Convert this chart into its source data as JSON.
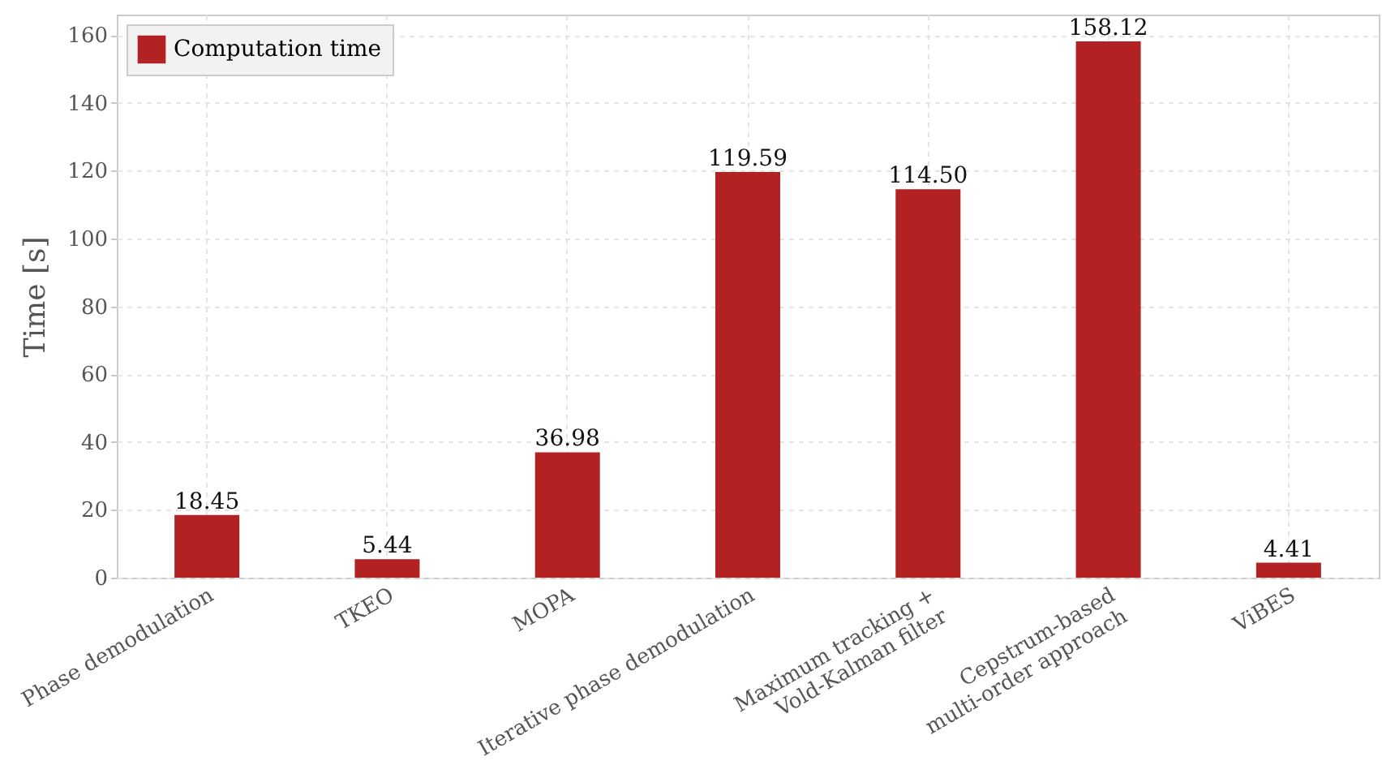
{
  "chart_data": {
    "type": "bar",
    "ylabel": "Time [s]",
    "categories": [
      "Phase demodulation",
      "TKEO",
      "MOPA",
      "Iterative phase demodulation",
      "Maximum tracking +\nVold-Kalman filter",
      "Cepstrum-based\nmulti-order approach",
      "ViBES"
    ],
    "series": [
      {
        "name": "Computation time",
        "color": "#b22222",
        "values": [
          18.45,
          5.44,
          36.98,
          119.59,
          114.5,
          158.12,
          4.41
        ],
        "value_labels": [
          "18.45",
          "5.44",
          "36.98",
          "119.59",
          "114.50",
          "158.12",
          "4.41"
        ]
      }
    ],
    "ylim": [
      0,
      166
    ],
    "yticks": [
      0,
      20,
      40,
      60,
      80,
      100,
      120,
      140,
      160
    ],
    "grid": true,
    "legend": "top left"
  }
}
